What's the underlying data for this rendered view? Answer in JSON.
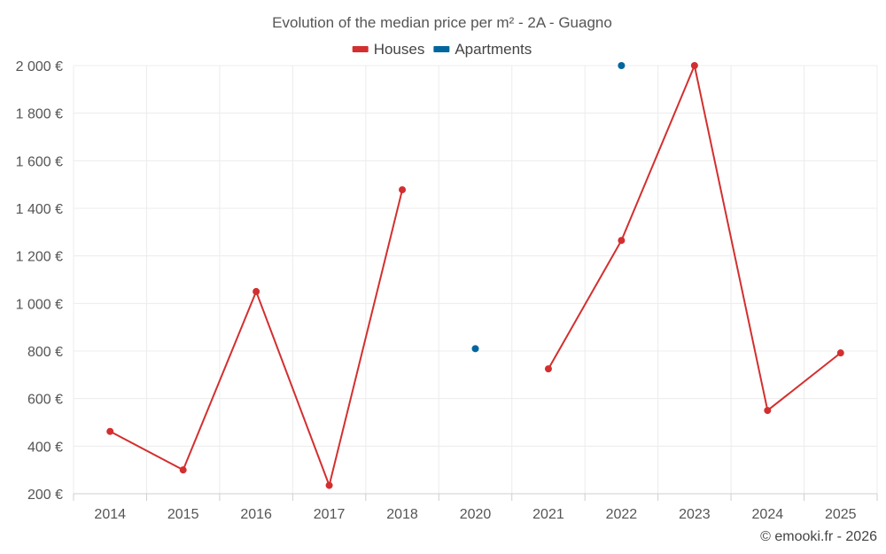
{
  "chart_data": {
    "type": "line",
    "title": "Evolution of the median price per m² - 2A - Guagno",
    "categories": [
      "2014",
      "2015",
      "2016",
      "2017",
      "2018",
      "2020",
      "2021",
      "2022",
      "2023",
      "2024",
      "2025"
    ],
    "series": [
      {
        "name": "Houses",
        "color": "#d32f2f",
        "values": [
          462,
          300,
          1050,
          235,
          1478,
          null,
          725,
          1265,
          2000,
          550,
          792
        ]
      },
      {
        "name": "Apartments",
        "color": "#01669e",
        "values": [
          null,
          null,
          null,
          null,
          null,
          810,
          null,
          2000,
          null,
          null,
          null
        ]
      }
    ],
    "y_ticks": [
      "200 €",
      "400 €",
      "600 €",
      "800 €",
      "1 000 €",
      "1 200 €",
      "1 400 €",
      "1 600 €",
      "1 800 €",
      "2 000 €"
    ],
    "ylim": [
      200,
      2000
    ],
    "xlabel": "",
    "ylabel": "",
    "grid": true,
    "legend_position": "top-center"
  },
  "credit": "© emooki.fr - 2026"
}
